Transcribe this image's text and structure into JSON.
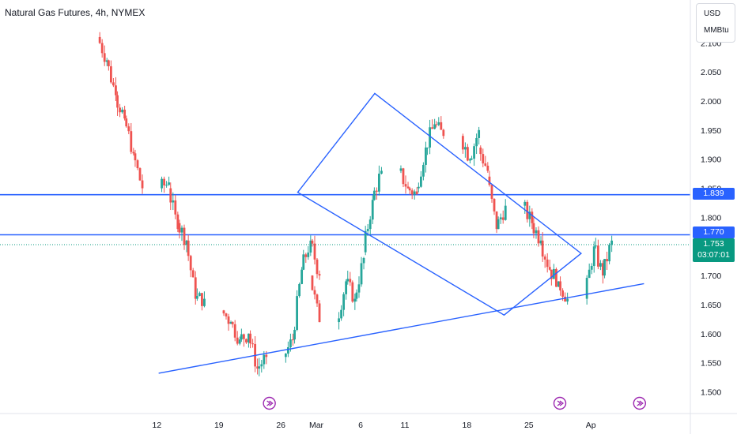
{
  "header": {
    "title": "Natural Gas Futures, 4h, NYMEX"
  },
  "units": {
    "currency": "USD",
    "unit": "MMBtu"
  },
  "colors": {
    "up": "#26a69a",
    "down": "#ef5350",
    "line": "#2962ff",
    "lastPrice": "#089981",
    "event": "#9c27b0"
  },
  "price_tags": {
    "h1": "1.839",
    "h2": "1.770",
    "last": "1.753",
    "countdown": "03:07:01"
  },
  "chart_data": {
    "type": "candlestick",
    "title": "Natural Gas Futures, 4h, NYMEX",
    "y_unit": "USD/MMBtu",
    "ylim": [
      1.488,
      2.17
    ],
    "yticks": [
      "2.100",
      "2.050",
      "2.000",
      "1.950",
      "1.900",
      "1.850",
      "1.800",
      "1.750",
      "1.700",
      "1.650",
      "1.600",
      "1.550",
      "1.500"
    ],
    "ytick_values": [
      2.1,
      2.05,
      2.0,
      1.95,
      1.9,
      1.85,
      1.8,
      1.75,
      1.7,
      1.65,
      1.6,
      1.55,
      1.5
    ],
    "xticks": [
      "12",
      "19",
      "26",
      "Mar",
      "6",
      "11",
      "18",
      "25",
      "Ap"
    ],
    "xtick_days": [
      -18,
      -11,
      -4,
      0,
      5,
      10,
      17,
      24,
      31
    ],
    "x_domain_days": [
      -29,
      32
    ],
    "horizontal_lines": [
      1.839,
      1.77
    ],
    "last_price": 1.753,
    "countdown": "03:07:01",
    "ohlc_daily": [
      [
        "Feb 5",
        2.11,
        2.14,
        2.06,
        2.07
      ],
      [
        "Feb 6",
        2.07,
        2.09,
        2.0,
        2.01
      ],
      [
        "Feb 7",
        2.01,
        2.03,
        1.96,
        1.97
      ],
      [
        "Feb 8",
        1.97,
        1.985,
        1.9,
        1.91
      ],
      [
        "Feb 9",
        1.91,
        1.93,
        1.84,
        1.85
      ],
      [
        "Feb 12",
        1.85,
        1.87,
        1.82,
        1.86
      ],
      [
        "Feb 13",
        1.85,
        1.86,
        1.76,
        1.78
      ],
      [
        "Feb 14",
        1.79,
        1.81,
        1.74,
        1.76
      ],
      [
        "Feb 15",
        1.76,
        1.77,
        1.65,
        1.66
      ],
      [
        "Feb 16",
        1.66,
        1.68,
        1.64,
        1.66
      ],
      [
        "Feb 19",
        1.64,
        1.66,
        1.6,
        1.62
      ],
      [
        "Feb 20",
        1.62,
        1.64,
        1.58,
        1.59
      ],
      [
        "Feb 21",
        1.59,
        1.62,
        1.57,
        1.6
      ],
      [
        "Feb 22",
        1.6,
        1.61,
        1.52,
        1.54
      ],
      [
        "Feb 23",
        1.54,
        1.57,
        1.525,
        1.56
      ],
      [
        "Feb 26",
        1.56,
        1.6,
        1.55,
        1.59
      ],
      [
        "Feb 27",
        1.59,
        1.72,
        1.58,
        1.71
      ],
      [
        "Feb 28",
        1.71,
        1.79,
        1.7,
        1.76
      ],
      [
        "Feb 29",
        1.76,
        1.77,
        1.69,
        1.7
      ],
      [
        "Mar 1",
        1.7,
        1.72,
        1.59,
        1.62
      ],
      [
        "Mar 4",
        1.62,
        1.7,
        1.58,
        1.69
      ],
      [
        "Mar 5",
        1.69,
        1.72,
        1.64,
        1.66
      ],
      [
        "Mar 6",
        1.66,
        1.74,
        1.61,
        1.73
      ],
      [
        "Mar 7",
        1.74,
        1.84,
        1.73,
        1.83
      ],
      [
        "Mar 8",
        1.83,
        1.89,
        1.82,
        1.88
      ],
      [
        "Mar 11",
        1.88,
        1.9,
        1.83,
        1.85
      ],
      [
        "Mar 12",
        1.85,
        1.87,
        1.82,
        1.84
      ],
      [
        "Mar 13",
        1.85,
        1.93,
        1.84,
        1.92
      ],
      [
        "Mar 14",
        1.92,
        1.99,
        1.9,
        1.96
      ],
      [
        "Mar 15",
        1.96,
        1.985,
        1.92,
        1.94
      ],
      [
        "Mar 18",
        1.94,
        1.96,
        1.89,
        1.9
      ],
      [
        "Mar 19",
        1.9,
        1.96,
        1.88,
        1.95
      ],
      [
        "Mar 20",
        1.92,
        1.93,
        1.86,
        1.88
      ],
      [
        "Mar 21",
        1.87,
        1.88,
        1.76,
        1.78
      ],
      [
        "Mar 22",
        1.78,
        1.84,
        1.77,
        1.82
      ],
      [
        "Mar 25",
        1.82,
        1.83,
        1.78,
        1.79
      ],
      [
        "Mar 26",
        1.79,
        1.8,
        1.74,
        1.76
      ],
      [
        "Mar 27",
        1.76,
        1.79,
        1.7,
        1.71
      ],
      [
        "Mar 28",
        1.71,
        1.72,
        1.68,
        1.69
      ],
      [
        "Mar 29",
        1.69,
        1.7,
        1.65,
        1.66
      ],
      [
        "Apr 1",
        1.66,
        1.76,
        1.65,
        1.75
      ],
      [
        "Apr 2",
        1.75,
        1.77,
        1.65,
        1.7
      ],
      [
        "Apr 3",
        1.7,
        1.77,
        1.69,
        1.76
      ]
    ]
  }
}
